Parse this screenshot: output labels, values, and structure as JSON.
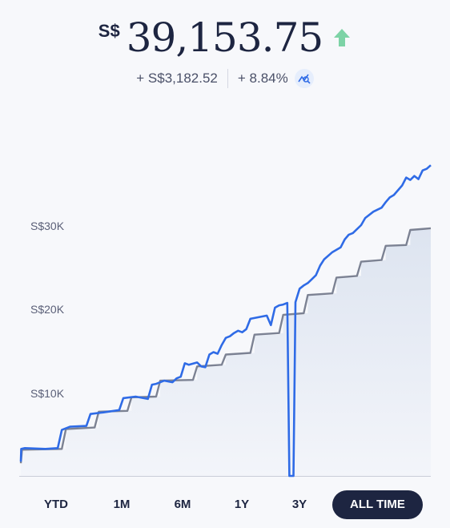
{
  "portfolio": {
    "currency_symbol": "S$",
    "value": "39,153.75",
    "change_abs": "+ S$3,182.52",
    "change_pct": "+ 8.84%",
    "trend": "up",
    "trend_color": "#7dd3a6"
  },
  "chart_data": {
    "type": "line",
    "ylabel_ticks": [
      "S$10K",
      "S$20K",
      "S$30K"
    ],
    "ylim": [
      0,
      41800
    ],
    "grid": false,
    "series": [
      {
        "color": "#2f6be6",
        "points": [
          [
            0,
            1800
          ],
          [
            0.1,
            3400
          ],
          [
            1,
            3500
          ],
          [
            6,
            3400
          ],
          [
            9,
            3500
          ],
          [
            10,
            5800
          ],
          [
            12,
            6200
          ],
          [
            16,
            6300
          ],
          [
            17,
            7800
          ],
          [
            20,
            8000
          ],
          [
            24,
            8300
          ],
          [
            25,
            9800
          ],
          [
            28,
            10000
          ],
          [
            31,
            9700
          ],
          [
            32,
            11500
          ],
          [
            33,
            11600
          ],
          [
            35,
            12000
          ],
          [
            37,
            11800
          ],
          [
            38,
            12300
          ],
          [
            39,
            12500
          ],
          [
            40,
            14200
          ],
          [
            41,
            14000
          ],
          [
            43,
            14300
          ],
          [
            44,
            13800
          ],
          [
            45,
            13700
          ],
          [
            46,
            15300
          ],
          [
            47,
            15600
          ],
          [
            48,
            15400
          ],
          [
            49,
            16500
          ],
          [
            50,
            17400
          ],
          [
            51,
            17600
          ],
          [
            52,
            18000
          ],
          [
            53,
            18300
          ],
          [
            54,
            18100
          ],
          [
            55,
            18500
          ],
          [
            56,
            19800
          ],
          [
            58,
            20000
          ],
          [
            60,
            20200
          ],
          [
            61,
            19000
          ],
          [
            62,
            21200
          ],
          [
            63,
            21500
          ],
          [
            64,
            21600
          ],
          [
            65,
            21800
          ],
          [
            65.5,
            0
          ],
          [
            66.5,
            0
          ],
          [
            67,
            21900
          ],
          [
            68,
            23600
          ],
          [
            69,
            24000
          ],
          [
            70,
            24300
          ],
          [
            71,
            24800
          ],
          [
            72,
            25300
          ],
          [
            73,
            26500
          ],
          [
            74,
            27300
          ],
          [
            76,
            28200
          ],
          [
            78,
            28800
          ],
          [
            79,
            29800
          ],
          [
            80,
            30400
          ],
          [
            81,
            30600
          ],
          [
            83,
            31600
          ],
          [
            84,
            32500
          ],
          [
            86,
            33300
          ],
          [
            88,
            33800
          ],
          [
            89,
            34500
          ],
          [
            90,
            35100
          ],
          [
            91,
            35400
          ],
          [
            93,
            36600
          ],
          [
            94,
            37600
          ],
          [
            95,
            37300
          ],
          [
            96,
            37800
          ],
          [
            97,
            37400
          ],
          [
            98,
            38500
          ],
          [
            99,
            38700
          ],
          [
            100,
            39153
          ]
        ]
      },
      {
        "color": "#7c8293",
        "points": [
          [
            0,
            1600
          ],
          [
            0.3,
            3300
          ],
          [
            10,
            3400
          ],
          [
            11,
            5900
          ],
          [
            18,
            6100
          ],
          [
            19,
            8100
          ],
          [
            26,
            8200
          ],
          [
            27,
            9900
          ],
          [
            33,
            10000
          ],
          [
            34,
            12000
          ],
          [
            42,
            12100
          ],
          [
            43,
            13800
          ],
          [
            49,
            14000
          ],
          [
            50,
            15300
          ],
          [
            56,
            15500
          ],
          [
            57,
            17800
          ],
          [
            63,
            18000
          ],
          [
            64,
            20300
          ],
          [
            69,
            20500
          ],
          [
            70,
            22800
          ],
          [
            76,
            23000
          ],
          [
            77,
            25000
          ],
          [
            82,
            25200
          ],
          [
            83,
            27000
          ],
          [
            88,
            27200
          ],
          [
            89,
            29000
          ],
          [
            94,
            29100
          ],
          [
            95,
            31000
          ],
          [
            100,
            31200
          ]
        ]
      }
    ]
  },
  "ranges": {
    "ytd": "YTD",
    "m1": "1M",
    "m6": "6M",
    "y1": "1Y",
    "y3": "3Y",
    "all": "ALL TIME",
    "active": "ALL TIME"
  }
}
